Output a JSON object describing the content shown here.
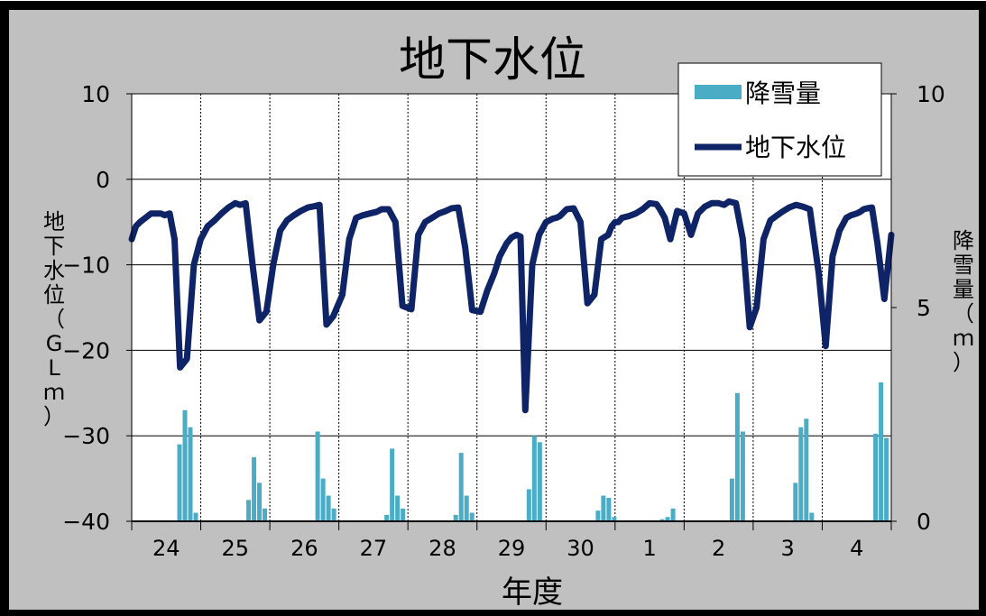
{
  "chart_data": {
    "type": "bar+line",
    "title": "地下水位",
    "xlabel": "年度",
    "ylabel_left": [
      "地",
      "下",
      "水",
      "位",
      "（",
      "G",
      "L",
      "ｍ",
      "）"
    ],
    "ylabel_right": [
      "降",
      "雪",
      "量",
      "（",
      "ｍ",
      "）"
    ],
    "ylim_left": [
      -40,
      10
    ],
    "ylim_right": [
      0,
      10
    ],
    "yticks_left": [
      "10",
      "0",
      "−10",
      "−20",
      "−30",
      "−40"
    ],
    "yticks_right": [
      "10",
      "5",
      "0"
    ],
    "categories": [
      "24",
      "25",
      "26",
      "27",
      "28",
      "29",
      "30",
      "1",
      "2",
      "3",
      "4"
    ],
    "grid": true,
    "legend_position": "top-right",
    "colors": {
      "bar": "#4BACC6",
      "line": "#0F2467",
      "plot_bg": "#ffffff",
      "page_bg": "#C0C0C0",
      "frame": "#000000"
    },
    "series": [
      {
        "name": "降雪量",
        "type": "bar",
        "axis": "right",
        "bars": [
          {
            "year_index": 0,
            "values": [
              1.8,
              2.6,
              2.2,
              0.2
            ]
          },
          {
            "year_index": 1,
            "values": [
              0.5,
              1.5,
              0.9,
              0.3
            ]
          },
          {
            "year_index": 2,
            "values": [
              2.1,
              1.0,
              0.6,
              0.3
            ]
          },
          {
            "year_index": 3,
            "values": [
              0.15,
              1.7,
              0.6,
              0.3
            ]
          },
          {
            "year_index": 4,
            "values": [
              0.15,
              1.6,
              0.6,
              0.2
            ]
          },
          {
            "year_index": 5,
            "values": [
              0.75,
              2.0,
              1.85
            ]
          },
          {
            "year_index": 6,
            "values": [
              0.25,
              0.6,
              0.55,
              0.1
            ]
          },
          {
            "year_index": 7,
            "values": [
              0.05,
              0.1,
              0.3
            ]
          },
          {
            "year_index": 8,
            "values": [
              1.0,
              3.0,
              2.1
            ]
          },
          {
            "year_index": 9,
            "values": [
              0.9,
              2.2,
              2.4,
              0.2
            ]
          },
          {
            "year_index": 10,
            "values": [
              2.05,
              3.25,
              1.95
            ]
          }
        ]
      },
      {
        "name": "地下水位",
        "type": "line",
        "axis": "left",
        "x": [
          0.0,
          0.06,
          0.12,
          0.2,
          0.28,
          0.36,
          0.42,
          0.48,
          0.55,
          0.62,
          0.7,
          0.8,
          0.9,
          1.0,
          1.1,
          1.2,
          1.3,
          1.4,
          1.5,
          1.57,
          1.65,
          1.75,
          1.85,
          1.95,
          2.05,
          2.15,
          2.25,
          2.35,
          2.45,
          2.55,
          2.62,
          2.72,
          2.82,
          2.92,
          3.05,
          3.15,
          3.25,
          3.35,
          3.45,
          3.55,
          3.62,
          3.72,
          3.82,
          3.92,
          4.05,
          4.15,
          4.25,
          4.35,
          4.45,
          4.55,
          4.63,
          4.73,
          4.83,
          4.93,
          5.05,
          5.15,
          5.25,
          5.33,
          5.43,
          5.5,
          5.57,
          5.63,
          5.7,
          5.8,
          5.9,
          6.0,
          6.1,
          6.15,
          6.2,
          6.3,
          6.4,
          6.5,
          6.6,
          6.7,
          6.8,
          6.9,
          6.95,
          7.0,
          7.05,
          7.1,
          7.2,
          7.3,
          7.4,
          7.5,
          7.6,
          7.65,
          7.72,
          7.8,
          7.9,
          8.0,
          8.1,
          8.2,
          8.3,
          8.4,
          8.5,
          8.58,
          8.65,
          8.75,
          8.85,
          8.95,
          9.05,
          9.15,
          9.25,
          9.35,
          9.42,
          9.52,
          9.62,
          9.72,
          9.82,
          9.95,
          10.05,
          10.15,
          10.25,
          10.35,
          10.42,
          10.5,
          10.55,
          10.6,
          10.65,
          10.72,
          10.8,
          10.9,
          11.0
        ],
        "y": [
          -7,
          -5.5,
          -5,
          -4.5,
          -4,
          -4,
          -4,
          -4.2,
          -4,
          -7,
          -22,
          -21,
          -10,
          -7,
          -5.5,
          -4.8,
          -4,
          -3.3,
          -2.8,
          -3,
          -2.8,
          -10,
          -16.5,
          -15.5,
          -10,
          -6,
          -4.8,
          -4.2,
          -3.7,
          -3.3,
          -3.2,
          -3,
          -17,
          -16,
          -13.5,
          -7,
          -4.5,
          -4.2,
          -4,
          -3.8,
          -3.5,
          -3.5,
          -5,
          -14.8,
          -15.2,
          -6.5,
          -5,
          -4.5,
          -4,
          -3.7,
          -3.4,
          -3.3,
          -8,
          -15.3,
          -15.5,
          -13,
          -11,
          -9,
          -7.5,
          -6.8,
          -6.5,
          -6.7,
          -27,
          -10,
          -6.5,
          -5,
          -4.6,
          -4.5,
          -4.3,
          -3.5,
          -3.4,
          -5,
          -14.5,
          -13.5,
          -7,
          -6.5,
          -5.5,
          -5,
          -5,
          -4.5,
          -4.3,
          -4,
          -3.5,
          -2.8,
          -2.9,
          -3.5,
          -4.5,
          -7,
          -3.7,
          -4,
          -6.5,
          -4,
          -3.2,
          -2.8,
          -2.8,
          -3,
          -2.6,
          -2.8,
          -7,
          -17.3,
          -15,
          -7,
          -4.8,
          -4.2,
          -3.8,
          -3.3,
          -3,
          -3.2,
          -3.5,
          -11,
          -19.5,
          -9,
          -6,
          -4.5,
          -4.2,
          -4,
          -3.8,
          -3.5,
          -3.4,
          -3.3,
          -7.5,
          -14,
          -6.5
        ]
      }
    ]
  }
}
